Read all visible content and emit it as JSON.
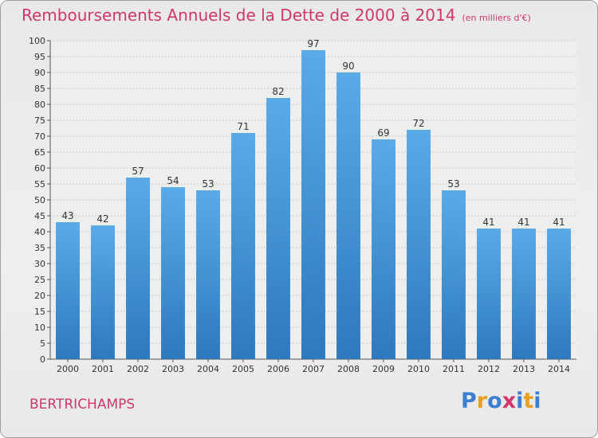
{
  "chart_data": {
    "type": "bar",
    "title": "Remboursements Annuels de la Dette de 2000 à 2014",
    "unit_note": "(en milliers d'€)",
    "categories": [
      "2000",
      "2001",
      "2002",
      "2003",
      "2004",
      "2005",
      "2006",
      "2007",
      "2008",
      "2009",
      "2010",
      "2011",
      "2012",
      "2013",
      "2014"
    ],
    "values": [
      43,
      42,
      57,
      54,
      53,
      71,
      82,
      97,
      90,
      69,
      72,
      53,
      41,
      41,
      41
    ],
    "ylim": [
      0,
      100
    ],
    "ytick_step": 5,
    "grid": true,
    "bar_color": "#4a98d8",
    "title_color": "#d0386a"
  },
  "footer": {
    "commune": "BERTRICHAMPS",
    "logo_letters": [
      "P",
      "r",
      "o",
      "x",
      "i",
      "t",
      "i"
    ],
    "logo_colors": [
      "#3a7fd0",
      "#e8a020",
      "#3a7fd0",
      "#d0386a",
      "#3a7fd0",
      "#e8a020",
      "#3a7fd0"
    ]
  }
}
